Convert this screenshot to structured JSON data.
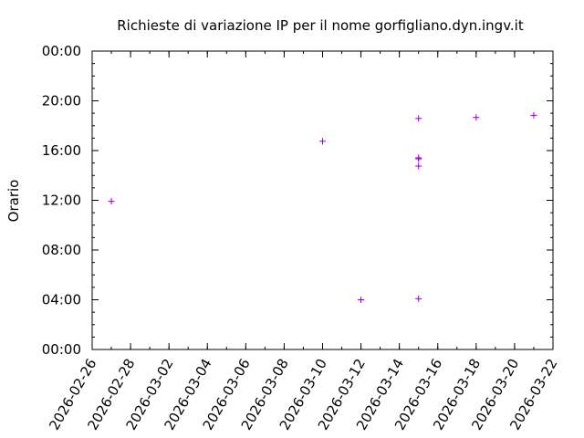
{
  "chart_data": {
    "type": "scatter",
    "title": "Richieste di variazione IP per il nome gorfigliano.dyn.ingv.it",
    "xlabel": "",
    "ylabel": "Orario",
    "x_ticks": [
      "2026-02-26",
      "2026-02-28",
      "2026-03-02",
      "2026-03-04",
      "2026-03-06",
      "2026-03-08",
      "2026-03-10",
      "2026-03-12",
      "2026-03-14",
      "2026-03-16",
      "2026-03-18",
      "2026-03-20",
      "2026-03-22"
    ],
    "y_ticks": [
      "00:00",
      "04:00",
      "08:00",
      "12:00",
      "16:00",
      "20:00",
      "00:00"
    ],
    "xlim": [
      "2026-02-26",
      "2026-03-22"
    ],
    "ylim": [
      "00:00",
      "24:00"
    ],
    "grid": false,
    "marker": "+",
    "marker_color": "#9400d3",
    "points": [
      {
        "x": "2026-02-27",
        "y": "11:55"
      },
      {
        "x": "2026-03-10",
        "y": "16:45"
      },
      {
        "x": "2026-03-12",
        "y": "04:00"
      },
      {
        "x": "2026-03-15",
        "y": "18:35"
      },
      {
        "x": "2026-03-15",
        "y": "15:25"
      },
      {
        "x": "2026-03-15",
        "y": "15:20"
      },
      {
        "x": "2026-03-15",
        "y": "14:45"
      },
      {
        "x": "2026-03-15",
        "y": "04:05"
      },
      {
        "x": "2026-03-18",
        "y": "18:40"
      },
      {
        "x": "2026-03-21",
        "y": "18:50"
      }
    ]
  }
}
